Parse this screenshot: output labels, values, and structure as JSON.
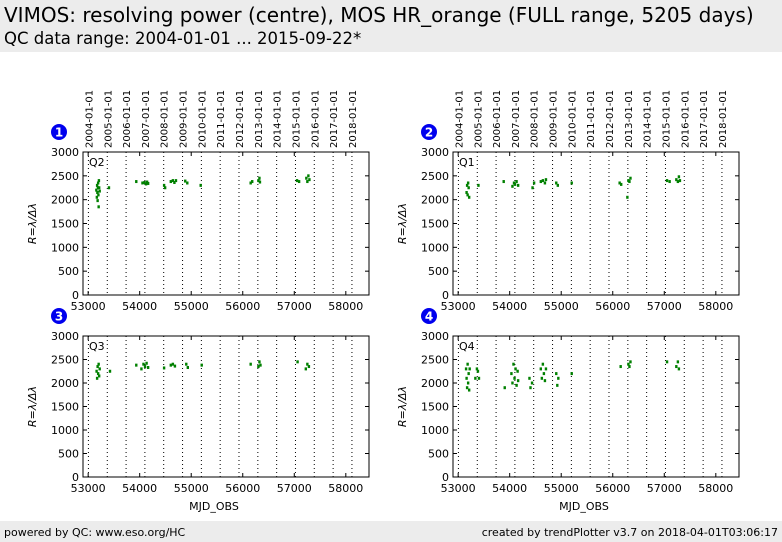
{
  "header": {
    "title": "VIMOS: resolving power (centre), MOS HR_orange (FULL range, 5205 days)",
    "subtitle": "QC data range: 2004-01-01 ... 2015-09-22*"
  },
  "footer": {
    "left": "powered by QC: www.eso.org/HC",
    "right": "created by trendPlotter v3.7 on 2018-04-01T03:06:17"
  },
  "colors": {
    "points": "#008000",
    "badge": "#0000ee",
    "header_bg": "#ececec"
  },
  "chart_data": [
    {
      "type": "scatter",
      "panel": "1",
      "label": "Q2",
      "ylabel": "R=λ/Δλ",
      "xlabel": "",
      "xlim": [
        52900,
        58450
      ],
      "ylim": [
        0,
        3000
      ],
      "xticks": [
        53000,
        54000,
        55000,
        56000,
        57000,
        58000
      ],
      "yticks": [
        0,
        500,
        1000,
        1500,
        2000,
        2500,
        3000
      ],
      "top_axis_dates": [
        "2004-01-01",
        "2005-01-01",
        "2006-01-01",
        "2007-01-01",
        "2008-01-01",
        "2009-01-01",
        "2010-01-01",
        "2011-01-01",
        "2012-01-01",
        "2013-01-01",
        "2014-01-01",
        "2015-01-01",
        "2016-01-01",
        "2017-01-01",
        "2018-01-01"
      ],
      "year_lines_mjd": [
        53005,
        53371,
        53736,
        54101,
        54466,
        54832,
        55197,
        55562,
        55927,
        56293,
        56658,
        57023,
        57388,
        57754,
        58119
      ],
      "points": [
        [
          53155,
          2200
        ],
        [
          53165,
          2050
        ],
        [
          53170,
          2300
        ],
        [
          53175,
          2150
        ],
        [
          53180,
          1980
        ],
        [
          53185,
          2250
        ],
        [
          53190,
          2350
        ],
        [
          53195,
          2100
        ],
        [
          53200,
          1850
        ],
        [
          53205,
          2400
        ],
        [
          53210,
          2250
        ],
        [
          53220,
          2180
        ],
        [
          53400,
          2250
        ],
        [
          53930,
          2380
        ],
        [
          54050,
          2350
        ],
        [
          54090,
          2360
        ],
        [
          54120,
          2330
        ],
        [
          54140,
          2370
        ],
        [
          54160,
          2340
        ],
        [
          54470,
          2300
        ],
        [
          54490,
          2250
        ],
        [
          54600,
          2380
        ],
        [
          54640,
          2400
        ],
        [
          54670,
          2360
        ],
        [
          54700,
          2400
        ],
        [
          54880,
          2390
        ],
        [
          54920,
          2350
        ],
        [
          55180,
          2300
        ],
        [
          56150,
          2350
        ],
        [
          56180,
          2380
        ],
        [
          56300,
          2400
        ],
        [
          56320,
          2450
        ],
        [
          56330,
          2370
        ],
        [
          57050,
          2400
        ],
        [
          57090,
          2380
        ],
        [
          57230,
          2450
        ],
        [
          57250,
          2380
        ],
        [
          57270,
          2500
        ],
        [
          57290,
          2420
        ]
      ]
    },
    {
      "type": "scatter",
      "panel": "2",
      "label": "Q1",
      "ylabel": "R=λ/Δλ",
      "xlabel": "",
      "xlim": [
        52900,
        58450
      ],
      "ylim": [
        0,
        3000
      ],
      "xticks": [
        53000,
        54000,
        55000,
        56000,
        57000,
        58000
      ],
      "yticks": [
        0,
        500,
        1000,
        1500,
        2000,
        2500,
        3000
      ],
      "top_axis_dates": [
        "2004-01-01",
        "2005-01-01",
        "2006-01-01",
        "2007-01-01",
        "2008-01-01",
        "2009-01-01",
        "2010-01-01",
        "2011-01-01",
        "2012-01-01",
        "2013-01-01",
        "2014-01-01",
        "2015-01-01",
        "2016-01-01",
        "2017-01-01",
        "2018-01-01"
      ],
      "year_lines_mjd": [
        53005,
        53371,
        53736,
        54101,
        54466,
        54832,
        55197,
        55562,
        55927,
        56293,
        56658,
        57023,
        57388,
        57754,
        58119
      ],
      "points": [
        [
          53160,
          2150
        ],
        [
          53170,
          2300
        ],
        [
          53180,
          2100
        ],
        [
          53190,
          2350
        ],
        [
          53200,
          2250
        ],
        [
          53210,
          2050
        ],
        [
          53390,
          2300
        ],
        [
          53880,
          2380
        ],
        [
          54050,
          2280
        ],
        [
          54080,
          2350
        ],
        [
          54100,
          2320
        ],
        [
          54130,
          2380
        ],
        [
          54160,
          2300
        ],
        [
          54440,
          2250
        ],
        [
          54470,
          2350
        ],
        [
          54600,
          2380
        ],
        [
          54640,
          2400
        ],
        [
          54680,
          2350
        ],
        [
          54700,
          2420
        ],
        [
          54900,
          2350
        ],
        [
          54930,
          2300
        ],
        [
          55200,
          2350
        ],
        [
          56130,
          2350
        ],
        [
          56160,
          2320
        ],
        [
          56280,
          2050
        ],
        [
          56300,
          2400
        ],
        [
          56320,
          2380
        ],
        [
          56340,
          2450
        ],
        [
          57050,
          2400
        ],
        [
          57100,
          2380
        ],
        [
          57230,
          2420
        ],
        [
          57260,
          2380
        ],
        [
          57280,
          2480
        ],
        [
          57300,
          2400
        ]
      ]
    },
    {
      "type": "scatter",
      "panel": "3",
      "label": "Q3",
      "ylabel": "R=λ/Δλ",
      "xlabel": "MJD_OBS",
      "xlim": [
        52900,
        58450
      ],
      "ylim": [
        0,
        3000
      ],
      "xticks": [
        53000,
        54000,
        55000,
        56000,
        57000,
        58000
      ],
      "yticks": [
        0,
        500,
        1000,
        1500,
        2000,
        2500,
        3000
      ],
      "top_axis_dates": [],
      "year_lines_mjd": [
        53005,
        53371,
        53736,
        54101,
        54466,
        54832,
        55197,
        55562,
        55927,
        56293,
        56658,
        57023,
        57388,
        57754,
        58119
      ],
      "points": [
        [
          53160,
          2250
        ],
        [
          53170,
          2100
        ],
        [
          53180,
          2350
        ],
        [
          53190,
          2200
        ],
        [
          53200,
          2400
        ],
        [
          53210,
          2150
        ],
        [
          53220,
          2300
        ],
        [
          53420,
          2250
        ],
        [
          53930,
          2380
        ],
        [
          54030,
          2300
        ],
        [
          54070,
          2400
        ],
        [
          54100,
          2350
        ],
        [
          54130,
          2420
        ],
        [
          54160,
          2330
        ],
        [
          54470,
          2320
        ],
        [
          54600,
          2380
        ],
        [
          54640,
          2400
        ],
        [
          54680,
          2360
        ],
        [
          54900,
          2400
        ],
        [
          54930,
          2330
        ],
        [
          55200,
          2380
        ],
        [
          56150,
          2400
        ],
        [
          56300,
          2350
        ],
        [
          56320,
          2450
        ],
        [
          56340,
          2380
        ],
        [
          57060,
          2450
        ],
        [
          57220,
          2300
        ],
        [
          57250,
          2400
        ],
        [
          57280,
          2350
        ]
      ]
    },
    {
      "type": "scatter",
      "panel": "4",
      "label": "Q4",
      "ylabel": "R=λ/Δλ",
      "xlabel": "MJD_OBS",
      "xlim": [
        52900,
        58450
      ],
      "ylim": [
        0,
        3000
      ],
      "xticks": [
        53000,
        54000,
        55000,
        56000,
        57000,
        58000
      ],
      "yticks": [
        0,
        500,
        1000,
        1500,
        2000,
        2500,
        3000
      ],
      "top_axis_dates": [],
      "year_lines_mjd": [
        53005,
        53371,
        53736,
        54101,
        54466,
        54832,
        55197,
        55562,
        55927,
        56293,
        56658,
        57023,
        57388,
        57754,
        58119
      ],
      "points": [
        [
          53150,
          2300
        ],
        [
          53160,
          2100
        ],
        [
          53170,
          1900
        ],
        [
          53180,
          2400
        ],
        [
          53190,
          2000
        ],
        [
          53200,
          2200
        ],
        [
          53210,
          1850
        ],
        [
          53220,
          2300
        ],
        [
          53330,
          2100
        ],
        [
          53360,
          2300
        ],
        [
          53380,
          2250
        ],
        [
          53400,
          2100
        ],
        [
          53900,
          1900
        ],
        [
          54030,
          2200
        ],
        [
          54050,
          2000
        ],
        [
          54070,
          2400
        ],
        [
          54090,
          2100
        ],
        [
          54110,
          2300
        ],
        [
          54130,
          1950
        ],
        [
          54150,
          2250
        ],
        [
          54160,
          2050
        ],
        [
          54380,
          2100
        ],
        [
          54400,
          1900
        ],
        [
          54430,
          2000
        ],
        [
          54600,
          2300
        ],
        [
          54620,
          2100
        ],
        [
          54640,
          2400
        ],
        [
          54660,
          2200
        ],
        [
          54680,
          2050
        ],
        [
          54700,
          2300
        ],
        [
          54900,
          2200
        ],
        [
          54920,
          1950
        ],
        [
          54940,
          2100
        ],
        [
          55200,
          2200
        ],
        [
          56150,
          2350
        ],
        [
          56300,
          2400
        ],
        [
          56320,
          2350
        ],
        [
          56340,
          2450
        ],
        [
          57050,
          2450
        ],
        [
          57230,
          2350
        ],
        [
          57260,
          2450
        ],
        [
          57280,
          2300
        ]
      ]
    }
  ]
}
